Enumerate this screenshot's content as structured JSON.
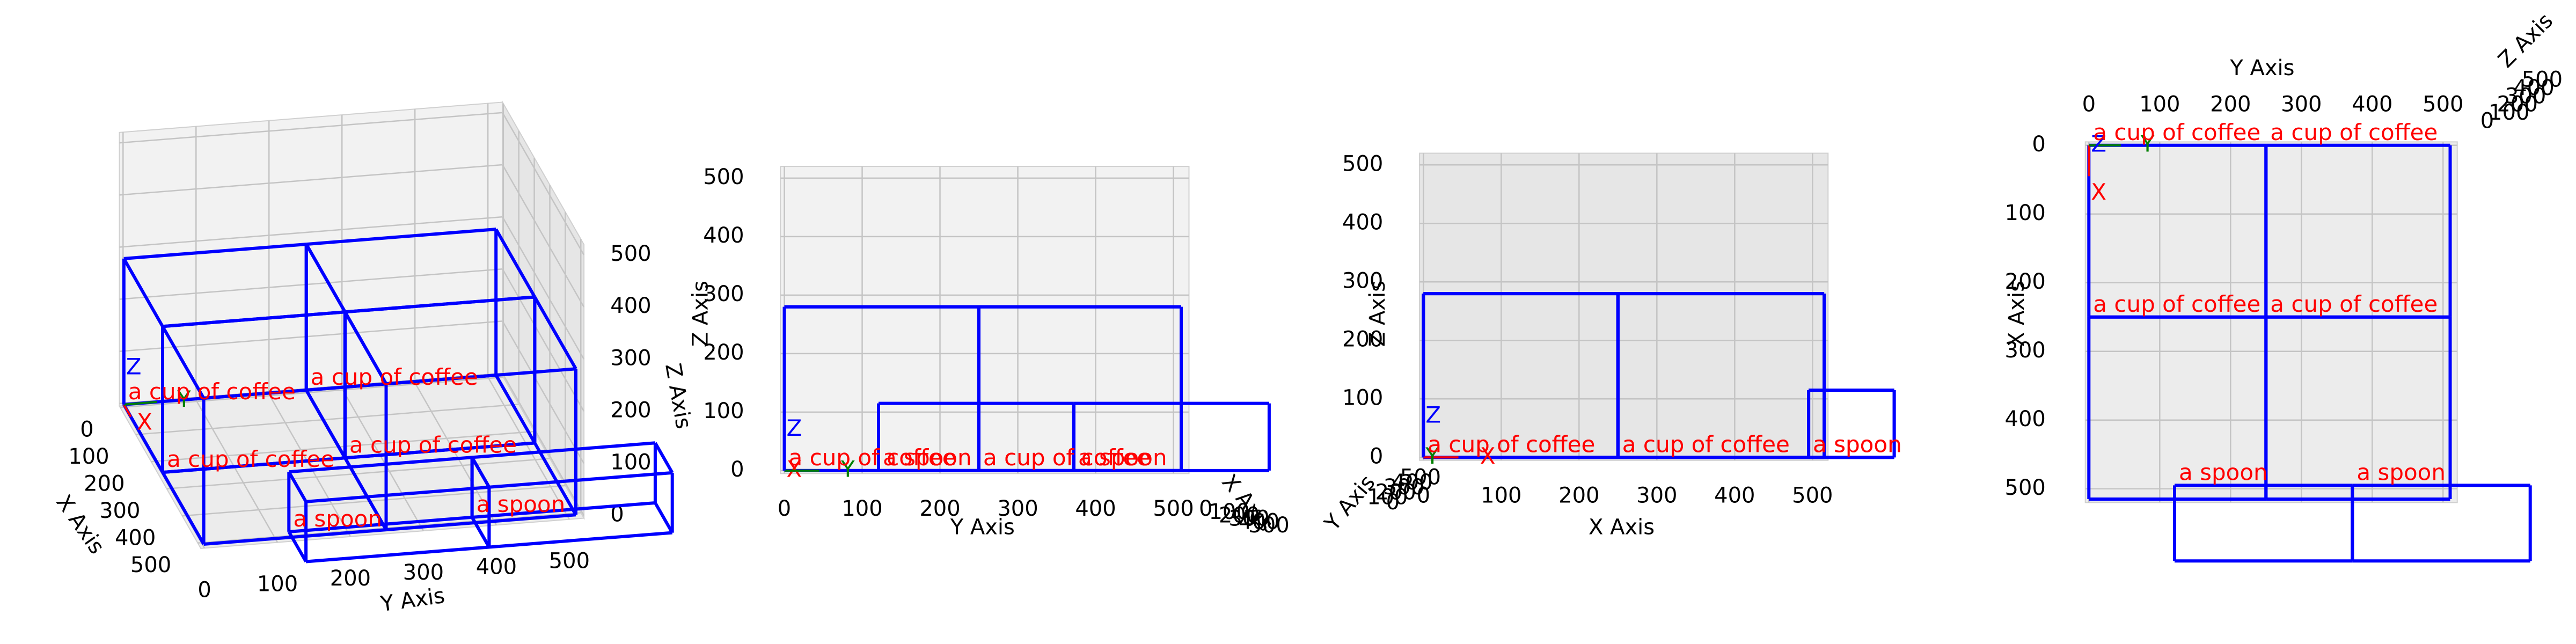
{
  "chart_data": [
    {
      "type": "box3d",
      "xlabel": "X Axis",
      "ylabel": "Y Axis",
      "zlabel": "Z Axis",
      "xlim": [
        -5,
        520
      ],
      "ylim": [
        -5,
        520
      ],
      "zlim": [
        -5,
        520
      ],
      "xticks": [
        0,
        100,
        200,
        300,
        400,
        500
      ],
      "yticks": [
        0,
        100,
        200,
        300,
        400,
        500
      ],
      "zticks": [
        0,
        100,
        200,
        300,
        400,
        500
      ],
      "grid": true,
      "box_color": "#0000ff",
      "label_color": "#ff0000",
      "axis_markers": [
        {
          "label": "X",
          "color": "#ff0000"
        },
        {
          "label": "Y",
          "color": "#008000"
        },
        {
          "label": "Z",
          "color": "#0000ff"
        }
      ],
      "objects": [
        {
          "label": "a cup of coffee",
          "x": [
            0,
            250
          ],
          "y": [
            0,
            250
          ],
          "z": [
            0,
            280
          ]
        },
        {
          "label": "a cup of coffee",
          "x": [
            0,
            250
          ],
          "y": [
            250,
            510
          ],
          "z": [
            0,
            280
          ]
        },
        {
          "label": "a cup of coffee",
          "x": [
            250,
            515
          ],
          "y": [
            0,
            250
          ],
          "z": [
            0,
            280
          ]
        },
        {
          "label": "a cup of coffee",
          "x": [
            250,
            515
          ],
          "y": [
            250,
            510
          ],
          "z": [
            0,
            280
          ]
        },
        {
          "label": "a spoon",
          "x": [
            495,
            605
          ],
          "y": [
            121,
            372
          ],
          "z": [
            0,
            115
          ]
        },
        {
          "label": "a spoon",
          "x": [
            495,
            605
          ],
          "y": [
            372,
            623
          ],
          "z": [
            0,
            115
          ]
        }
      ]
    },
    {
      "type": "box3d",
      "xlabel": "X Axis",
      "ylabel": "Y Axis",
      "zlabel": "Z Axis",
      "xlim": [
        -5,
        520
      ],
      "ylim": [
        -5,
        520
      ],
      "zlim": [
        -5,
        520
      ],
      "xticks": [
        0,
        100,
        200,
        300,
        400,
        500
      ],
      "yticks": [
        0,
        100,
        200,
        300,
        400,
        500
      ],
      "zticks": [
        0,
        100,
        200,
        300,
        400,
        500
      ],
      "grid": true,
      "box_color": "#0000ff",
      "label_color": "#ff0000",
      "axis_markers": [
        {
          "label": "X",
          "color": "#ff0000"
        },
        {
          "label": "Y",
          "color": "#008000"
        },
        {
          "label": "Z",
          "color": "#0000ff"
        }
      ],
      "objects": [
        {
          "label": "a cup of coffee",
          "x": [
            0,
            250
          ],
          "y": [
            0,
            250
          ],
          "z": [
            0,
            280
          ]
        },
        {
          "label": "a cup of coffee",
          "x": [
            0,
            250
          ],
          "y": [
            250,
            510
          ],
          "z": [
            0,
            280
          ]
        },
        {
          "label": "a cup of coffee",
          "x": [
            250,
            515
          ],
          "y": [
            0,
            250
          ],
          "z": [
            0,
            280
          ]
        },
        {
          "label": "a cup of coffee",
          "x": [
            250,
            515
          ],
          "y": [
            250,
            510
          ],
          "z": [
            0,
            280
          ]
        },
        {
          "label": "a spoon",
          "x": [
            495,
            605
          ],
          "y": [
            121,
            372
          ],
          "z": [
            0,
            115
          ]
        },
        {
          "label": "a spoon",
          "x": [
            495,
            605
          ],
          "y": [
            372,
            623
          ],
          "z": [
            0,
            115
          ]
        }
      ]
    },
    {
      "type": "box3d",
      "xlabel": "X Axis",
      "ylabel": "Y Axis",
      "zlabel": "Z Axis",
      "xlim": [
        -5,
        520
      ],
      "ylim": [
        -5,
        520
      ],
      "zlim": [
        -5,
        520
      ],
      "xticks": [
        0,
        100,
        200,
        300,
        400,
        500
      ],
      "yticks": [
        0,
        100,
        200,
        300,
        400,
        500
      ],
      "zticks": [
        0,
        100,
        200,
        300,
        400,
        500
      ],
      "grid": true,
      "box_color": "#0000ff",
      "label_color": "#ff0000",
      "axis_markers": [
        {
          "label": "X",
          "color": "#ff0000"
        },
        {
          "label": "Y",
          "color": "#008000"
        },
        {
          "label": "Z",
          "color": "#0000ff"
        }
      ],
      "objects": [
        {
          "label": "a cup of coffee",
          "x": [
            0,
            250
          ],
          "y": [
            0,
            250
          ],
          "z": [
            0,
            280
          ]
        },
        {
          "label": "a cup of coffee",
          "x": [
            0,
            250
          ],
          "y": [
            250,
            510
          ],
          "z": [
            0,
            280
          ]
        },
        {
          "label": "a cup of coffee",
          "x": [
            250,
            515
          ],
          "y": [
            0,
            250
          ],
          "z": [
            0,
            280
          ]
        },
        {
          "label": "a cup of coffee",
          "x": [
            250,
            515
          ],
          "y": [
            250,
            510
          ],
          "z": [
            0,
            280
          ]
        },
        {
          "label": "a spoon",
          "x": [
            495,
            605
          ],
          "y": [
            121,
            372
          ],
          "z": [
            0,
            115
          ]
        },
        {
          "label": "a spoon",
          "x": [
            495,
            605
          ],
          "y": [
            372,
            623
          ],
          "z": [
            0,
            115
          ]
        }
      ]
    },
    {
      "type": "box3d",
      "xlabel": "X Axis",
      "ylabel": "Y Axis",
      "zlabel": "Z Axis",
      "xlim": [
        -5,
        520
      ],
      "ylim": [
        -5,
        520
      ],
      "zlim": [
        -5,
        520
      ],
      "xticks": [
        0,
        100,
        200,
        300,
        400,
        500
      ],
      "yticks": [
        0,
        100,
        200,
        300,
        400,
        500
      ],
      "zticks": [
        0,
        100,
        200,
        300,
        400,
        500
      ],
      "grid": true,
      "box_color": "#0000ff",
      "label_color": "#ff0000",
      "axis_markers": [
        {
          "label": "X",
          "color": "#ff0000"
        },
        {
          "label": "Y",
          "color": "#008000"
        },
        {
          "label": "Z",
          "color": "#0000ff"
        }
      ],
      "objects": [
        {
          "label": "a cup of coffee",
          "x": [
            0,
            250
          ],
          "y": [
            0,
            250
          ],
          "z": [
            0,
            280
          ]
        },
        {
          "label": "a cup of coffee",
          "x": [
            0,
            250
          ],
          "y": [
            250,
            510
          ],
          "z": [
            0,
            280
          ]
        },
        {
          "label": "a cup of coffee",
          "x": [
            250,
            515
          ],
          "y": [
            0,
            250
          ],
          "z": [
            0,
            280
          ]
        },
        {
          "label": "a cup of coffee",
          "x": [
            250,
            515
          ],
          "y": [
            250,
            510
          ],
          "z": [
            0,
            280
          ]
        },
        {
          "label": "a spoon",
          "x": [
            495,
            605
          ],
          "y": [
            121,
            372
          ],
          "z": [
            0,
            115
          ]
        },
        {
          "label": "a spoon",
          "x": [
            495,
            605
          ],
          "y": [
            372,
            623
          ],
          "z": [
            0,
            115
          ]
        }
      ]
    }
  ]
}
